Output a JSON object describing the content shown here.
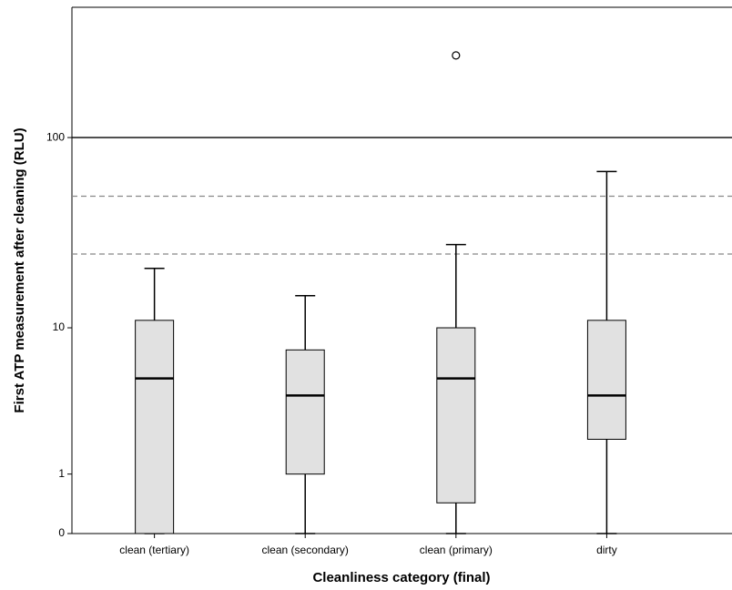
{
  "chart_data": {
    "type": "box",
    "x_label": "Cleanliness category (final)",
    "y_label": "First ATP measurement after cleaning (RLU)",
    "categories": [
      "clean (tertiary)",
      "clean  (secondary)",
      "clean (primary)",
      "dirty"
    ],
    "boxes": [
      {
        "min": 0,
        "q1": 0,
        "median": 5.1,
        "q3": 11,
        "max": 21
      },
      {
        "min": 0,
        "q1": 1,
        "median": 4,
        "q3": 7.5,
        "max": 15
      },
      {
        "min": 0,
        "q1": 0.43,
        "median": 5.1,
        "q3": 10,
        "max": 28,
        "outliers": [
          262
        ]
      },
      {
        "min": 0,
        "q1": 2,
        "median": 4,
        "q3": 11,
        "max": 67
      }
    ],
    "color": "#e1e1e1",
    "yscale": "log1p",
    "ylim": [
      0,
      460
    ],
    "yticks": [
      0,
      1,
      10,
      100
    ],
    "reference_lines": [
      {
        "value": 100,
        "style": "solid"
      },
      {
        "value": 50,
        "style": "dashed"
      },
      {
        "value": 25,
        "style": "dashed"
      }
    ]
  }
}
